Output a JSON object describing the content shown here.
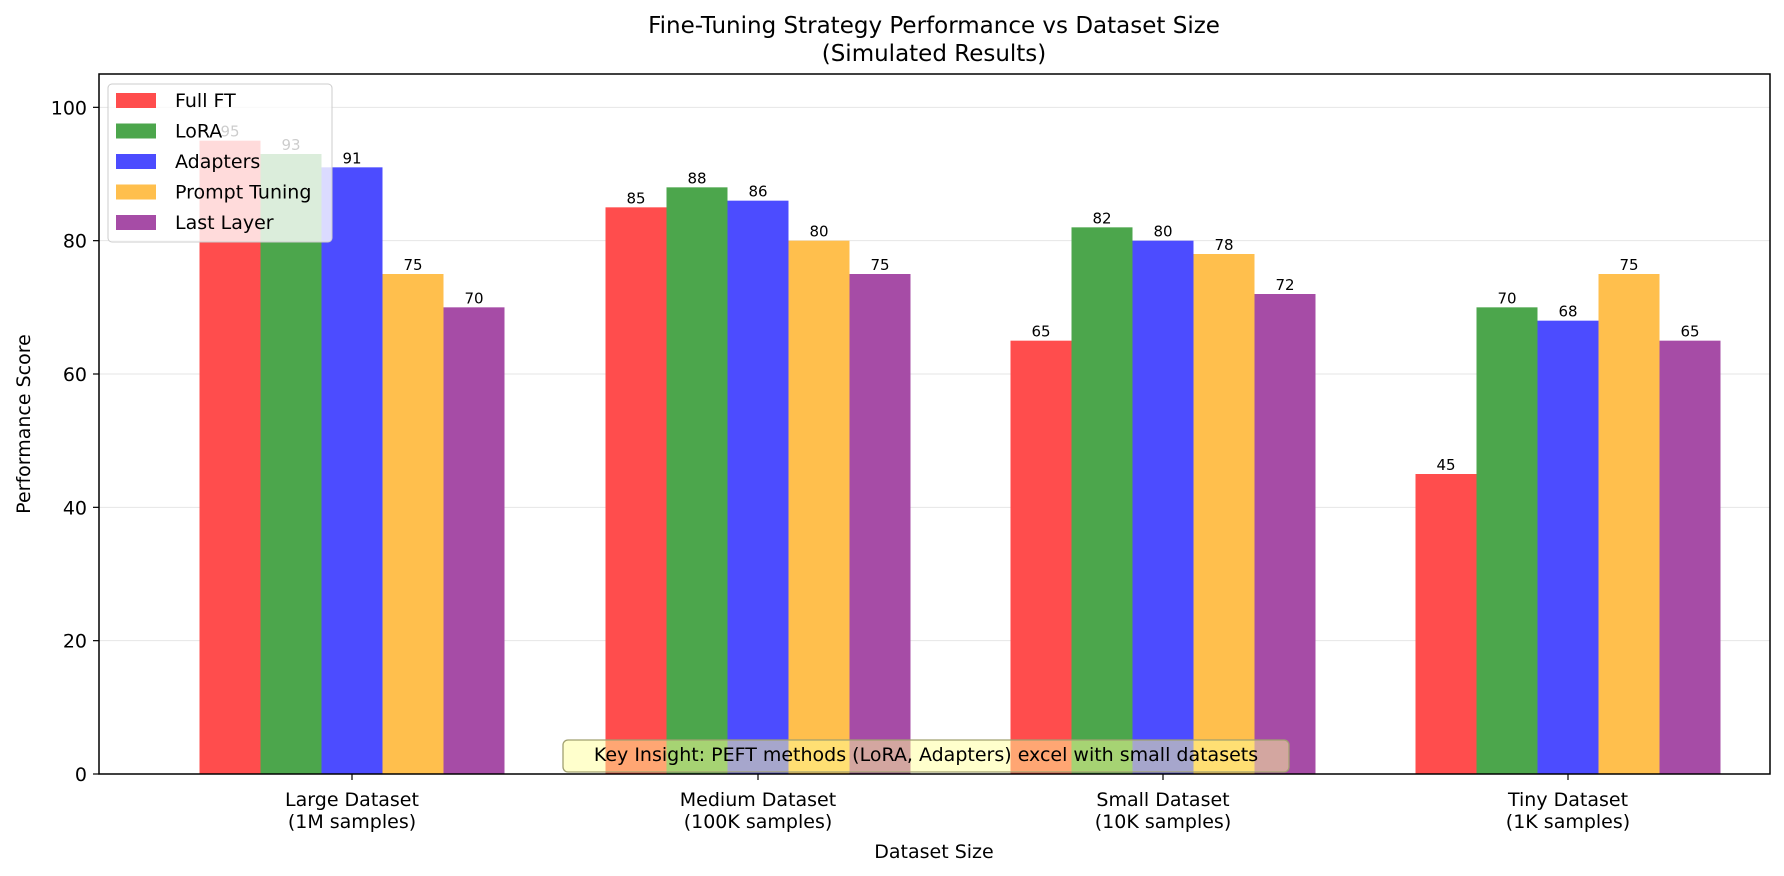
{
  "chart_data": {
    "type": "bar",
    "title": [
      "Fine-Tuning Strategy Performance vs Dataset Size",
      "(Simulated Results)"
    ],
    "xlabel": "Dataset Size",
    "ylabel": "Performance Score",
    "ylim": [
      0,
      105
    ],
    "yticks": [
      0,
      20,
      40,
      60,
      80,
      100
    ],
    "grid": "y",
    "legend_position": "top-left",
    "categories": [
      [
        "Large Dataset",
        "(1M samples)"
      ],
      [
        "Medium Dataset",
        "(100K samples)"
      ],
      [
        "Small Dataset",
        "(10K samples)"
      ],
      [
        "Tiny Dataset",
        "(1K samples)"
      ]
    ],
    "series": [
      {
        "name": "Full FT",
        "color": "#ff4d4d",
        "values": [
          95,
          85,
          65,
          45
        ]
      },
      {
        "name": "LoRA",
        "color": "#4ca64c",
        "values": [
          93,
          88,
          82,
          70
        ]
      },
      {
        "name": "Adapters",
        "color": "#4c4cff",
        "values": [
          91,
          86,
          80,
          68
        ]
      },
      {
        "name": "Prompt Tuning",
        "color": "#ffbf4d",
        "values": [
          75,
          80,
          78,
          75
        ]
      },
      {
        "name": "Last Layer",
        "color": "#a64ca6",
        "values": [
          70,
          75,
          72,
          65
        ]
      }
    ],
    "annotation": "Key Insight: PEFT methods (LoRA, Adapters) excel with small datasets"
  }
}
